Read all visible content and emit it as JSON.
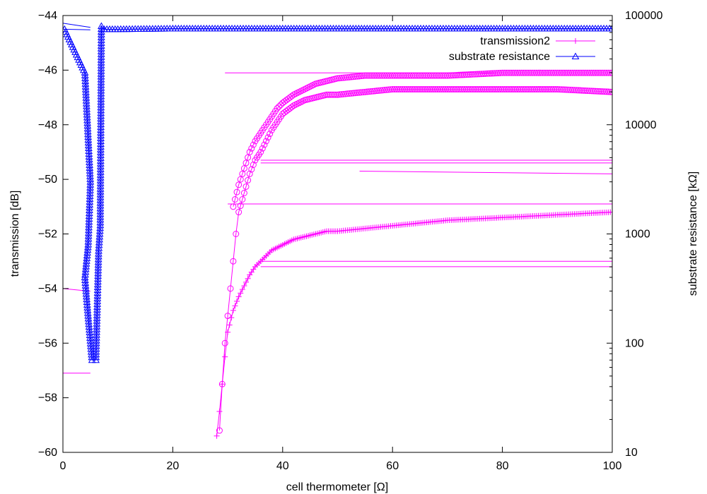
{
  "chart_data": {
    "type": "line",
    "title": "",
    "xlabel": "cell thermometer [Ω]",
    "ylabel": "transmission [dB]",
    "y2label": "substrate resistance [kΩ]",
    "xlim": [
      0,
      100
    ],
    "ylim": [
      -60,
      -44
    ],
    "y2lim": [
      10,
      100000
    ],
    "y2scale": "log",
    "xticks": [
      0,
      20,
      40,
      60,
      80,
      100
    ],
    "yticks": [
      -60,
      -58,
      -56,
      -54,
      -52,
      -50,
      -48,
      -46,
      -44
    ],
    "y2ticks": [
      10,
      100,
      1000,
      10000,
      100000
    ],
    "grid": false,
    "legend_position": "top-right",
    "colors": {
      "transmission": "#ff00ff",
      "substrate": "#0000ff"
    },
    "series": [
      {
        "name": "",
        "axis": "left",
        "marker": "circle",
        "color": "#ff00ff",
        "x": [
          28.5,
          29.0,
          29.5,
          30.0,
          30.5,
          31.0,
          31.5,
          32.0,
          33.0,
          34.0,
          35.0,
          36.0,
          37.0,
          38.0,
          39.0,
          40.0,
          42.0,
          44.0,
          46.0,
          48.0,
          50.0,
          55.0,
          60.0,
          65.0,
          70.0,
          80.0,
          90.0,
          100.0
        ],
        "y": [
          -59.2,
          -57.5,
          -56.0,
          -55.0,
          -54.0,
          -53.0,
          -52.0,
          -51.2,
          -50.5,
          -49.8,
          -49.3,
          -49.0,
          -48.6,
          -48.2,
          -47.9,
          -47.6,
          -47.3,
          -47.1,
          -47.0,
          -46.9,
          -46.9,
          -46.8,
          -46.7,
          -46.7,
          -46.7,
          -46.7,
          -46.7,
          -46.8
        ]
      },
      {
        "name": "",
        "axis": "left",
        "marker": "circle",
        "color": "#ff00ff",
        "x": [
          31.0,
          32.0,
          33.0,
          34.0,
          35.0,
          36.0,
          37.0,
          38.0,
          39.0,
          40.0,
          42.0,
          44.0,
          46.0,
          48.0,
          50.0,
          55.0,
          60.0,
          70.0,
          80.0,
          90.0,
          100.0
        ],
        "y": [
          -51.0,
          -50.2,
          -49.6,
          -49.0,
          -48.6,
          -48.3,
          -48.0,
          -47.7,
          -47.4,
          -47.2,
          -46.9,
          -46.7,
          -46.5,
          -46.4,
          -46.3,
          -46.2,
          -46.2,
          -46.2,
          -46.1,
          -46.1,
          -46.1
        ]
      },
      {
        "name": "transmission2",
        "axis": "left",
        "marker": "plus",
        "color": "#ff00ff",
        "x": [
          28.0,
          28.5,
          29.0,
          29.5,
          30.0,
          31.0,
          32.0,
          33.0,
          34.0,
          35.0,
          36.0,
          37.0,
          38.0,
          40.0,
          42.0,
          44.0,
          46.0,
          48.0,
          50.0,
          55.0,
          60.0,
          70.0,
          80.0,
          90.0,
          100.0
        ],
        "y": [
          -59.4,
          -58.5,
          -57.5,
          -56.5,
          -55.6,
          -54.8,
          -54.3,
          -53.9,
          -53.5,
          -53.2,
          -53.0,
          -52.8,
          -52.6,
          -52.4,
          -52.2,
          -52.1,
          -52.0,
          -51.9,
          -51.9,
          -51.8,
          -51.7,
          -51.5,
          -51.4,
          -51.3,
          -51.2
        ]
      },
      {
        "name": "substrate resistance",
        "axis": "right",
        "marker": "triangle",
        "color": "#0000ff",
        "x": [
          0.3,
          4.0,
          5.0,
          4.6,
          4.0,
          4.5,
          5.3,
          6.0,
          6.5,
          6.8,
          7.0,
          7.5,
          10.0,
          20.0,
          40.0,
          60.0,
          80.0,
          100.0
        ],
        "y": [
          75000,
          30000,
          3000,
          800,
          400,
          200,
          70,
          70,
          700,
          1200,
          80000,
          75000,
          75000,
          76000,
          76000,
          76000,
          76000,
          76000
        ]
      }
    ],
    "extra_lines": [
      {
        "axis": "left",
        "x": [
          29.5,
          100
        ],
        "y": [
          -46.1,
          -46.1
        ]
      },
      {
        "axis": "left",
        "x": [
          36.0,
          100
        ],
        "y": [
          -49.3,
          -49.3
        ]
      },
      {
        "axis": "left",
        "x": [
          36.0,
          100
        ],
        "y": [
          -49.4,
          -49.4
        ]
      },
      {
        "axis": "left",
        "x": [
          54.0,
          100
        ],
        "y": [
          -49.7,
          -49.8
        ]
      },
      {
        "axis": "left",
        "x": [
          30.0,
          100
        ],
        "y": [
          -50.9,
          -50.9
        ]
      },
      {
        "axis": "left",
        "x": [
          36.0,
          100
        ],
        "y": [
          -53.0,
          -53.0
        ]
      },
      {
        "axis": "left",
        "x": [
          36.0,
          100
        ],
        "y": [
          -53.2,
          -53.2
        ]
      },
      {
        "axis": "right",
        "x": [
          0.0,
          5.0
        ],
        "y": [
          75000,
          74000
        ]
      },
      {
        "axis": "right",
        "x": [
          0.0,
          5.0
        ],
        "y": [
          85000,
          78000
        ]
      },
      {
        "axis": "left",
        "x": [
          0.0,
          5.0
        ],
        "y": [
          -54.0,
          -54.1
        ]
      },
      {
        "axis": "left",
        "x": [
          0.0,
          5.0
        ],
        "y": [
          -57.1,
          -57.1
        ]
      }
    ]
  }
}
